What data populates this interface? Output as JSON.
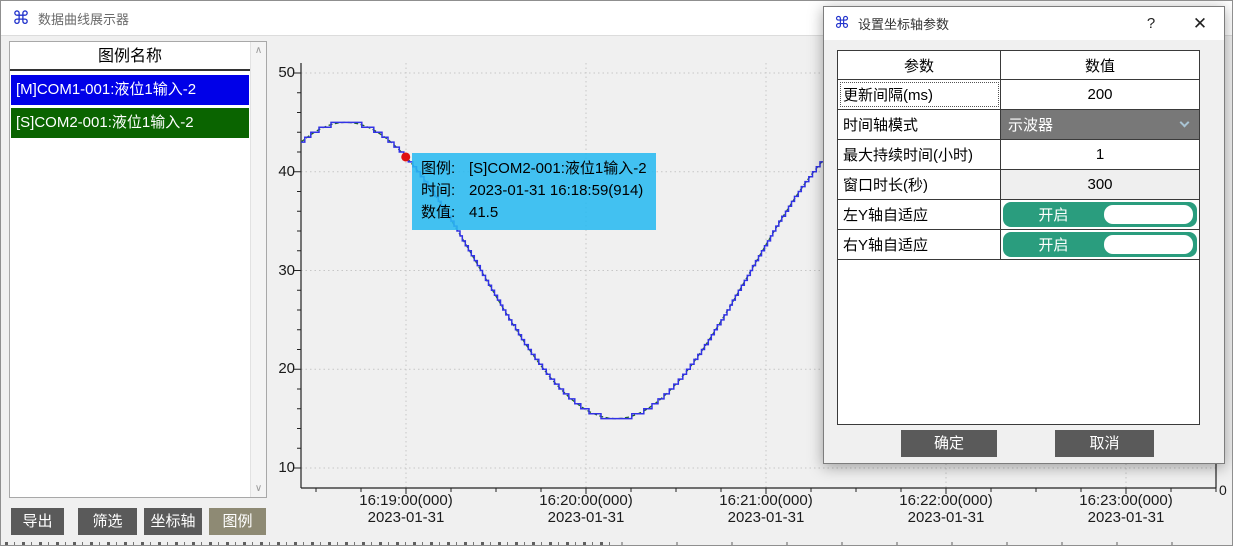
{
  "window": {
    "title": "数据曲线展示器"
  },
  "sidebar": {
    "header": "图例名称",
    "items": [
      {
        "label": "[M]COM1-001:液位1输入-2",
        "color": "#0000e8"
      },
      {
        "label": "[S]COM2-001:液位1输入-2",
        "color": "#0a6400"
      }
    ]
  },
  "toolbar": {
    "buttons": [
      {
        "label": "导出",
        "color": "#5a5a5a"
      },
      {
        "label": "筛选",
        "color": "#5a5a5a"
      },
      {
        "label": "坐标轴",
        "color": "#5a5a5a"
      },
      {
        "label": "图例",
        "color": "#8e8a74"
      }
    ]
  },
  "tooltip": {
    "bg": "#29baef",
    "rows": [
      {
        "label": "图例:",
        "value": "[S]COM2-001:液位1输入-2"
      },
      {
        "label": "时间:",
        "value": "2023-01-31 16:18:59(914)"
      },
      {
        "label": "数值:",
        "value": "41.5"
      }
    ]
  },
  "dialog": {
    "title": "设置坐标轴参数",
    "help_label": "?",
    "close_label": "✕",
    "accent_green": "#2a9d7e",
    "table": {
      "headers": [
        "参数",
        "数值"
      ],
      "rows": [
        {
          "param": "更新间隔(ms)",
          "value": "200",
          "type": "text",
          "focused": true
        },
        {
          "param": "时间轴模式",
          "value": "示波器",
          "type": "dropdown"
        },
        {
          "param": "最大持续时间(小时)",
          "value": "1",
          "type": "text"
        },
        {
          "param": "窗口时长(秒)",
          "value": "300",
          "type": "text",
          "shaded": true
        },
        {
          "param": "左Y轴自适应",
          "value": "开启",
          "type": "toggle"
        },
        {
          "param": "右Y轴自适应",
          "value": "开启",
          "type": "toggle"
        }
      ]
    },
    "buttons": [
      {
        "label": "确定"
      },
      {
        "label": "取消"
      }
    ]
  },
  "chart_data": {
    "type": "line",
    "title": "",
    "xlabel": "",
    "ylabel": "",
    "y_ticks": [
      50,
      40,
      30,
      20,
      10
    ],
    "ylim_shown": [
      8,
      52
    ],
    "x_ticks": [
      {
        "time": "16:19:00(000)",
        "date": "2023-01-31"
      },
      {
        "time": "16:20:00(000)",
        "date": "2023-01-31"
      },
      {
        "time": "16:21:00(000)",
        "date": "2023-01-31"
      },
      {
        "time": "16:22:00(000)",
        "date": "2023-01-31"
      },
      {
        "time": "16:23:00(000)",
        "date": "2023-01-31"
      }
    ],
    "right_axis": {
      "bottom_label": "0"
    },
    "grid": "dotted",
    "series": [
      {
        "name": "[M]COM1-001:液位1输入-2",
        "color": "#3232e6",
        "style": "step",
        "quantization": 0.5
      },
      {
        "name": "[S]COM2-001:液位1输入-2",
        "color": "#1e641e",
        "style": "smooth-dashed"
      }
    ],
    "waveform": {
      "shape": "sine",
      "center": 30,
      "amplitude": 15,
      "period_s": 180,
      "peak_offset_s_from_16_19_00": -20,
      "min_value": 15,
      "max_value": 45
    },
    "points_t_offset_s_value": [
      [
        -35,
        43.0
      ],
      [
        -20,
        45.0
      ],
      [
        -5,
        43.0
      ],
      [
        10,
        37.5
      ],
      [
        25,
        30.0
      ],
      [
        40,
        22.5
      ],
      [
        55,
        17.0
      ],
      [
        70,
        15.0
      ],
      [
        85,
        17.0
      ],
      [
        100,
        22.5
      ],
      [
        115,
        30.0
      ],
      [
        130,
        37.5
      ]
    ],
    "marker": {
      "series": "[S]COM2-001:液位1输入-2",
      "time": "2023-01-31 16:18:59(914)",
      "t_offset_s": -0.086,
      "value": 41.5,
      "color": "#e01212"
    }
  }
}
